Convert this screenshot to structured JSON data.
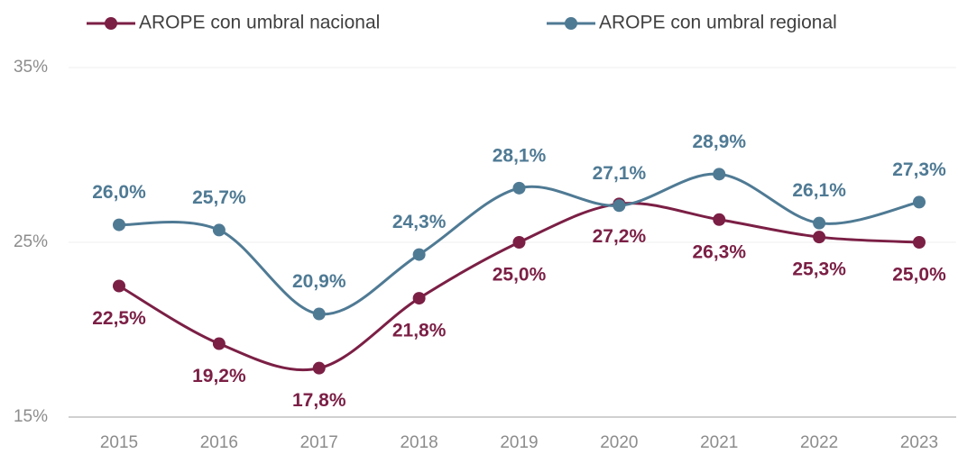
{
  "chart_data": {
    "type": "line",
    "categories": [
      "2015",
      "2016",
      "2017",
      "2018",
      "2019",
      "2020",
      "2021",
      "2022",
      "2023"
    ],
    "series": [
      {
        "name": "AROPE con umbral nacional",
        "color": "#7b1f45",
        "values": [
          22.5,
          19.2,
          17.8,
          21.8,
          25.0,
          27.2,
          26.3,
          25.3,
          25.0
        ],
        "value_labels": [
          "22,5%",
          "19,2%",
          "17,8%",
          "21,8%",
          "25,0%",
          "27,2%",
          "26,3%",
          "25,3%",
          "25,0%"
        ]
      },
      {
        "name": "AROPE con umbral regional",
        "color": "#4f7a94",
        "values": [
          26.0,
          25.7,
          20.9,
          24.3,
          28.1,
          27.1,
          28.9,
          26.1,
          27.3
        ],
        "value_labels": [
          "26,0%",
          "25,7%",
          "20,9%",
          "24,3%",
          "28,1%",
          "27,1%",
          "28,9%",
          "26,1%",
          "27,3%"
        ]
      }
    ],
    "ylim": [
      15,
      35
    ],
    "yticks": [
      {
        "value": 15,
        "label": "15%"
      },
      {
        "value": 25,
        "label": "25%"
      },
      {
        "value": 35,
        "label": "35%"
      }
    ],
    "grid": true
  }
}
